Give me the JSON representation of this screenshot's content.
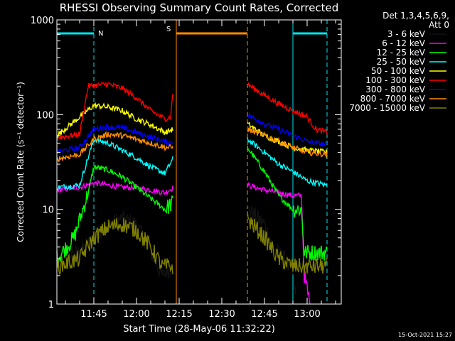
{
  "chart_data": {
    "type": "line",
    "title": "RHESSI Observing Summary Count Rates, Corrected",
    "xlabel": "Start Time (28-May-06 11:32:22)",
    "ylabel": "Corrected Count Rate (s⁻¹ detector⁻¹)",
    "yscale": "log",
    "ylim": [
      1,
      1000
    ],
    "xlim": [
      "11:32",
      "13:12"
    ],
    "x_ticks": [
      "11:45",
      "12:00",
      "12:15",
      "12:30",
      "12:45",
      "13:00"
    ],
    "y_ticks": [
      "1",
      "10",
      "100",
      "1000"
    ],
    "legend_header": [
      "Det 1,3,4,5,6,9,",
      "Att 0"
    ],
    "legend_position": "right",
    "footer_date": "15-Oct-2021 15:27",
    "markers": [
      {
        "label": "N",
        "color": "#00e5ee"
      },
      {
        "label": "S",
        "color": "#ff8c00"
      }
    ],
    "night_periods": [
      {
        "start": "11:32",
        "end": "11:45",
        "color": "#00e5ee"
      },
      {
        "start": "12:55",
        "end": "13:07",
        "color": "#00e5ee"
      }
    ],
    "saa_periods": [
      {
        "start": "12:14",
        "end": "12:39",
        "color": "#ff8c00"
      }
    ],
    "gaps": [
      {
        "start": "12:14",
        "end": "12:39"
      }
    ],
    "series": [
      {
        "name": "3 - 6 keV",
        "color": "#000000",
        "points": [
          [
            "11:32",
            3.5
          ],
          [
            "11:40",
            3.5
          ],
          [
            "11:45",
            5
          ],
          [
            "11:50",
            7
          ],
          [
            "11:55",
            8
          ],
          [
            "12:00",
            7
          ],
          [
            "12:05",
            3.5
          ],
          [
            "12:09",
            2
          ],
          [
            "12:13",
            2.5
          ],
          [
            "12:39",
            10
          ],
          [
            "12:45",
            7
          ],
          [
            "12:48",
            4
          ],
          [
            "12:52",
            3
          ],
          [
            "12:55",
            2
          ],
          [
            "12:56",
            1.2
          ]
        ]
      },
      {
        "name": "6 - 12 keV",
        "color": "#ff00ff",
        "points": [
          [
            "11:32",
            16
          ],
          [
            "11:40",
            17
          ],
          [
            "11:45",
            19
          ],
          [
            "11:50",
            18
          ],
          [
            "11:55",
            17
          ],
          [
            "12:00",
            17
          ],
          [
            "12:05",
            16
          ],
          [
            "12:10",
            15
          ],
          [
            "12:13",
            17
          ],
          [
            "12:39",
            18
          ],
          [
            "12:45",
            16
          ],
          [
            "12:50",
            15
          ],
          [
            "12:55",
            14
          ],
          [
            "12:58",
            14
          ],
          [
            "12:59",
            2
          ],
          [
            "13:01",
            1
          ]
        ]
      },
      {
        "name": "12 - 25 keV",
        "color": "#00ff00",
        "points": [
          [
            "11:32",
            3
          ],
          [
            "11:38",
            5
          ],
          [
            "11:43",
            15
          ],
          [
            "11:45",
            28
          ],
          [
            "11:50",
            26
          ],
          [
            "11:55",
            22
          ],
          [
            "12:00",
            17
          ],
          [
            "12:05",
            13
          ],
          [
            "12:10",
            10
          ],
          [
            "12:13",
            12
          ],
          [
            "12:39",
            45
          ],
          [
            "12:45",
            25
          ],
          [
            "12:50",
            14
          ],
          [
            "12:55",
            10
          ],
          [
            "12:58",
            10
          ],
          [
            "12:59",
            3.5
          ],
          [
            "13:07",
            3.5
          ]
        ]
      },
      {
        "name": "25 - 50 keV",
        "color": "#00ffff",
        "points": [
          [
            "11:32",
            17
          ],
          [
            "11:40",
            18
          ],
          [
            "11:45",
            55
          ],
          [
            "11:50",
            50
          ],
          [
            "11:55",
            42
          ],
          [
            "12:00",
            35
          ],
          [
            "12:05",
            28
          ],
          [
            "12:10",
            24
          ],
          [
            "12:13",
            35
          ],
          [
            "12:39",
            55
          ],
          [
            "12:45",
            40
          ],
          [
            "12:50",
            30
          ],
          [
            "12:55",
            25
          ],
          [
            "13:00",
            20
          ],
          [
            "13:07",
            18
          ]
        ]
      },
      {
        "name": "50 - 100 keV",
        "color": "#ffff00",
        "points": [
          [
            "11:32",
            60
          ],
          [
            "11:45",
            125
          ],
          [
            "11:50",
            120
          ],
          [
            "11:55",
            110
          ],
          [
            "12:00",
            90
          ],
          [
            "12:05",
            78
          ],
          [
            "12:10",
            65
          ],
          [
            "12:13",
            70
          ],
          [
            "12:39",
            80
          ],
          [
            "12:45",
            60
          ],
          [
            "12:50",
            52
          ],
          [
            "12:55",
            45
          ],
          [
            "13:00",
            42
          ],
          [
            "13:07",
            40
          ]
        ]
      },
      {
        "name": "100 - 300 keV",
        "color": "#ff0000",
        "points": [
          [
            "11:32",
            57
          ],
          [
            "11:40",
            62
          ],
          [
            "11:43",
            200
          ],
          [
            "11:50",
            210
          ],
          [
            "11:55",
            190
          ],
          [
            "12:00",
            150
          ],
          [
            "12:05",
            110
          ],
          [
            "12:10",
            90
          ],
          [
            "12:12",
            95
          ],
          [
            "12:13",
            200
          ],
          [
            "12:39",
            210
          ],
          [
            "12:45",
            160
          ],
          [
            "12:50",
            130
          ],
          [
            "12:55",
            110
          ],
          [
            "13:00",
            95
          ],
          [
            "13:03",
            70
          ],
          [
            "13:07",
            65
          ]
        ]
      },
      {
        "name": "300 - 800 keV",
        "color": "#0000ff",
        "points": [
          [
            "11:32",
            40
          ],
          [
            "11:40",
            45
          ],
          [
            "11:45",
            70
          ],
          [
            "11:50",
            75
          ],
          [
            "11:55",
            72
          ],
          [
            "12:00",
            65
          ],
          [
            "12:05",
            58
          ],
          [
            "12:10",
            52
          ],
          [
            "12:13",
            50
          ],
          [
            "12:39",
            100
          ],
          [
            "12:45",
            80
          ],
          [
            "12:50",
            70
          ],
          [
            "12:55",
            60
          ],
          [
            "13:00",
            52
          ],
          [
            "13:07",
            48
          ]
        ]
      },
      {
        "name": "800 - 7000 keV",
        "color": "#ff8c00",
        "points": [
          [
            "11:32",
            34
          ],
          [
            "11:40",
            38
          ],
          [
            "11:45",
            55
          ],
          [
            "11:50",
            62
          ],
          [
            "11:55",
            60
          ],
          [
            "12:00",
            55
          ],
          [
            "12:05",
            50
          ],
          [
            "12:10",
            45
          ],
          [
            "12:13",
            45
          ],
          [
            "12:39",
            70
          ],
          [
            "12:45",
            60
          ],
          [
            "12:50",
            52
          ],
          [
            "12:55",
            45
          ],
          [
            "13:00",
            40
          ],
          [
            "13:07",
            38
          ]
        ]
      },
      {
        "name": "7000 - 15000 keV",
        "color": "#808000",
        "points": [
          [
            "11:32",
            2.5
          ],
          [
            "11:40",
            3
          ],
          [
            "11:45",
            5
          ],
          [
            "11:50",
            6.5
          ],
          [
            "11:55",
            7
          ],
          [
            "12:00",
            6
          ],
          [
            "12:05",
            4
          ],
          [
            "12:09",
            2.5
          ],
          [
            "12:13",
            2.5
          ],
          [
            "12:39",
            8
          ],
          [
            "12:45",
            5
          ],
          [
            "12:50",
            3
          ],
          [
            "12:55",
            2.5
          ],
          [
            "13:00",
            2.5
          ],
          [
            "13:07",
            2.5
          ]
        ]
      }
    ]
  }
}
